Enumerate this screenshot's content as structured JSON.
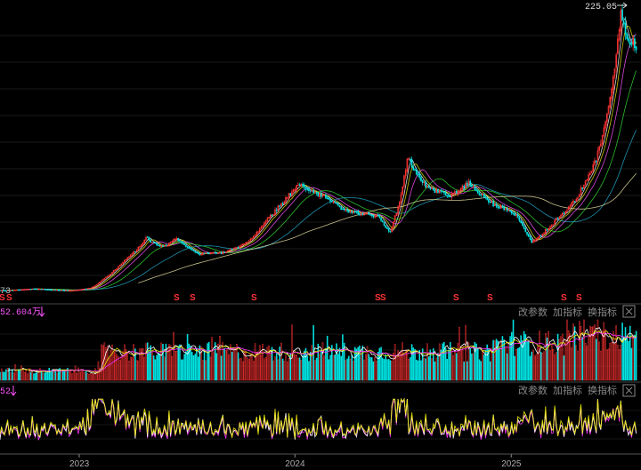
{
  "chart_data": [
    {
      "type": "candlestick",
      "panel": "price",
      "max_label": "225.05",
      "left_value_label": "73",
      "signal_markers": [
        "S",
        "S",
        "S",
        "S",
        "S",
        "S",
        "S",
        "S",
        "S",
        "S",
        "S",
        "S"
      ],
      "anchors": [
        {
          "d": "2022-09-01",
          "p": 6.2
        },
        {
          "d": "2022-10-15",
          "p": 7.5
        },
        {
          "d": "2022-12-15",
          "p": 6.0
        },
        {
          "d": "2023-01-20",
          "p": 8.0
        },
        {
          "d": "2023-02-10",
          "p": 15.0
        },
        {
          "d": "2023-03-15",
          "p": 28.0
        },
        {
          "d": "2023-04-25",
          "p": 48.0
        },
        {
          "d": "2023-05-20",
          "p": 40.0
        },
        {
          "d": "2023-06-15",
          "p": 47.0
        },
        {
          "d": "2023-07-20",
          "p": 35.0
        },
        {
          "d": "2023-09-01",
          "p": 36.0
        },
        {
          "d": "2023-10-15",
          "p": 45.0
        },
        {
          "d": "2023-11-15",
          "p": 62.0
        },
        {
          "d": "2024-01-05",
          "p": 90.0
        },
        {
          "d": "2024-02-20",
          "p": 80.0
        },
        {
          "d": "2024-04-01",
          "p": 68.0
        },
        {
          "d": "2024-05-20",
          "p": 65.0
        },
        {
          "d": "2024-06-10",
          "p": 52.0
        },
        {
          "d": "2024-07-10",
          "p": 110.0
        },
        {
          "d": "2024-08-10",
          "p": 88.0
        },
        {
          "d": "2024-09-20",
          "p": 80.0
        },
        {
          "d": "2024-10-20",
          "p": 90.0
        },
        {
          "d": "2024-12-01",
          "p": 74.0
        },
        {
          "d": "2025-01-10",
          "p": 66.0
        },
        {
          "d": "2025-02-05",
          "p": 44.0
        },
        {
          "d": "2025-03-10",
          "p": 58.0
        },
        {
          "d": "2025-04-20",
          "p": 78.0
        },
        {
          "d": "2025-05-25",
          "p": 110.0
        },
        {
          "d": "2025-06-20",
          "p": 165.0
        },
        {
          "d": "2025-07-05",
          "p": 222.0
        },
        {
          "d": "2025-07-20",
          "p": 200.0
        }
      ],
      "moving_average_colors": [
        "#ffffff",
        "#e6e600",
        "#ff55ff",
        "#33dd33",
        "#22aacc",
        "#e8e0a0"
      ],
      "up_color": "#ff3333",
      "down_color": "#00e5e5"
    },
    {
      "type": "bar",
      "panel": "volume",
      "value_label": "52.604万",
      "buttons": [
        "改参数",
        "加指标",
        "换指标"
      ],
      "regimes": [
        {
          "to": "2023-02-05",
          "level": 0.18
        },
        {
          "to": "2024-12-01",
          "level": 0.55
        },
        {
          "to": "2025-04-01",
          "level": 0.72
        },
        {
          "to": "2025-08-01",
          "level": 0.85
        }
      ]
    },
    {
      "type": "line",
      "panel": "indicator",
      "value_label": "52",
      "buttons": [
        "改参数",
        "加指标",
        "换指标"
      ],
      "line_colors": [
        "#ff33ff",
        "#ffffff",
        "#e6e600"
      ]
    }
  ],
  "x_axis": {
    "tick_labels": [
      "2023",
      "2024",
      "2025"
    ],
    "tick_dates": [
      "2023-01-01",
      "2024-01-01",
      "2025-01-01"
    ],
    "start": "2022-08-20",
    "end": "2025-08-01"
  }
}
